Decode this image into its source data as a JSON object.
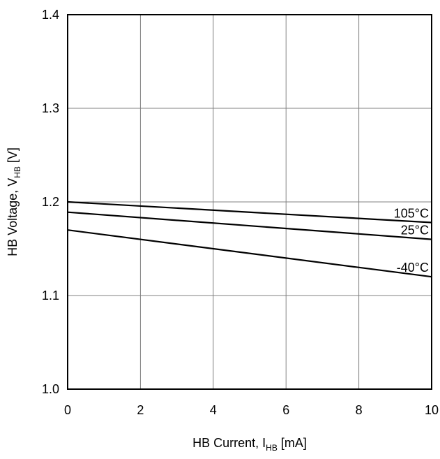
{
  "chart_data": {
    "type": "line",
    "title": "",
    "xlabel": {
      "prefix": "HB Current, I",
      "sub": "HB",
      "suffix": " [mA]"
    },
    "ylabel": {
      "prefix": "HB Voltage, V",
      "sub": "HB",
      "suffix": " [V]"
    },
    "xlim": [
      0,
      10
    ],
    "ylim": [
      1.0,
      1.4
    ],
    "xticks": [
      0,
      2,
      4,
      6,
      8,
      10
    ],
    "yticks": [
      1.0,
      1.1,
      1.2,
      1.3,
      1.4
    ],
    "xtick_labels": [
      "0",
      "2",
      "4",
      "6",
      "8",
      "10"
    ],
    "ytick_labels": [
      "1.0",
      "1.1",
      "1.2",
      "1.3",
      "1.4"
    ],
    "grid": true,
    "legend": "none",
    "series": [
      {
        "name": "105°C",
        "x": [
          0,
          10
        ],
        "y": [
          1.2,
          1.178
        ]
      },
      {
        "name": "25°C",
        "x": [
          0,
          10
        ],
        "y": [
          1.189,
          1.16
        ]
      },
      {
        "name": "-40°C",
        "x": [
          0,
          10
        ],
        "y": [
          1.17,
          1.12
        ]
      }
    ],
    "line_color": "#000000",
    "grid_color": "#808080"
  }
}
